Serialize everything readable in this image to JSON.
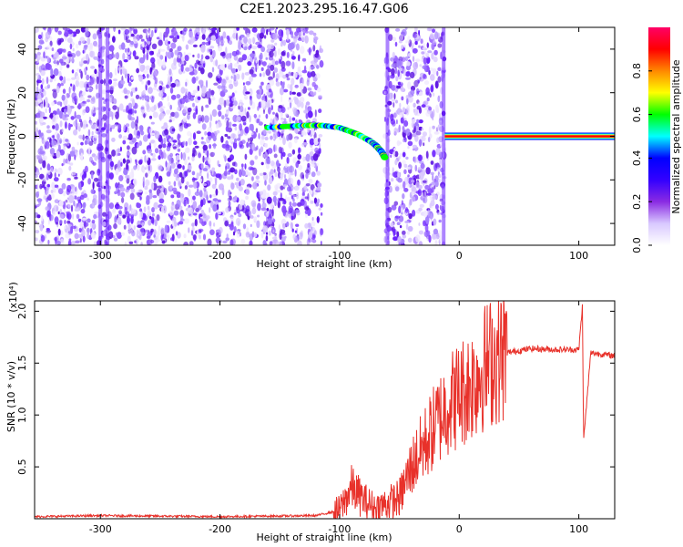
{
  "title": "C2E1.2023.295.16.47.G06",
  "chart_data": [
    {
      "type": "heatmap",
      "xlabel": "Height of straight line (km)",
      "ylabel": "Frequency (Hz)",
      "xlim": [
        -355,
        130
      ],
      "ylim": [
        -50,
        50
      ],
      "xticks": [
        -300,
        -200,
        -100,
        0,
        100
      ],
      "xtick_labels": [
        "-300",
        "-200",
        "-100",
        "0",
        "100"
      ],
      "yticks": [
        -40,
        -20,
        0,
        20,
        40
      ],
      "ytick_labels": [
        "-40",
        "-20",
        "0",
        "20",
        "40"
      ],
      "colorbar": {
        "label": "Normalized spectral amplitude",
        "range": [
          0,
          1
        ],
        "ticks": [
          0,
          0.2,
          0.4,
          0.6,
          0.8
        ],
        "tick_labels": [
          "0.0",
          "0.2",
          "0.4",
          "0.6",
          "0.8"
        ],
        "colormap": [
          "#ffffff",
          "#d8c8ff",
          "#8a2be2",
          "#3300ff",
          "#0000ff",
          "#00ffff",
          "#00ff00",
          "#ffff00",
          "#ff8800",
          "#ff0000",
          "#ff0066"
        ]
      },
      "features": {
        "noise_regions_km": [
          [
            -355,
            -115
          ],
          [
            -62,
            -12
          ]
        ],
        "clean_gap_km": [
          -115,
          -62
        ],
        "vertical_streaks_km": [
          -300,
          -294,
          -60,
          -13
        ],
        "doppler_curve": [
          {
            "x": -160,
            "y": 4
          },
          {
            "x": -130,
            "y": 5
          },
          {
            "x": -115,
            "y": 5
          },
          {
            "x": -100,
            "y": 4
          },
          {
            "x": -85,
            "y": 1
          },
          {
            "x": -75,
            "y": -2
          },
          {
            "x": -70,
            "y": -4
          },
          {
            "x": -65,
            "y": -7
          },
          {
            "x": -62,
            "y": -10
          }
        ],
        "steady_tone": {
          "x_start": -12,
          "x_end": 130,
          "frequency_hz": 0,
          "amplitude": 0.95
        }
      },
      "grid": false
    },
    {
      "type": "line",
      "xlabel": "Height of straight line (km)",
      "ylabel": "SNR (10 * v/v)",
      "scale_label": "(x10⁴)",
      "xlim": [
        -355,
        130
      ],
      "ylim": [
        0,
        2.1
      ],
      "xticks": [
        -300,
        -200,
        -100,
        0,
        100
      ],
      "xtick_labels": [
        "-300",
        "-200",
        "-100",
        "0",
        "100"
      ],
      "yticks": [
        0.5,
        1.0,
        1.5,
        2.0
      ],
      "ytick_labels": [
        "0.5",
        "1.0",
        "1.5",
        "2.0"
      ],
      "color": "#e8312a",
      "series": [
        {
          "values_description_points": [
            {
              "x": -355,
              "y": 0.02
            },
            {
              "x": -300,
              "y": 0.03
            },
            {
              "x": -200,
              "y": 0.02
            },
            {
              "x": -120,
              "y": 0.03
            },
            {
              "x": -100,
              "y": 0.08
            },
            {
              "x": -90,
              "y": 0.3
            },
            {
              "x": -80,
              "y": 0.18
            },
            {
              "x": -70,
              "y": 0.1
            },
            {
              "x": -60,
              "y": 0.15
            },
            {
              "x": -50,
              "y": 0.2
            },
            {
              "x": -40,
              "y": 0.5
            },
            {
              "x": -30,
              "y": 0.7
            },
            {
              "x": -20,
              "y": 0.9
            },
            {
              "x": -10,
              "y": 1.1
            },
            {
              "x": 0,
              "y": 1.2
            },
            {
              "x": 10,
              "y": 1.3
            },
            {
              "x": 20,
              "y": 1.45
            },
            {
              "x": 30,
              "y": 1.55
            },
            {
              "x": 40,
              "y": 1.6
            },
            {
              "x": 60,
              "y": 1.64
            },
            {
              "x": 80,
              "y": 1.63
            },
            {
              "x": 100,
              "y": 1.63
            },
            {
              "x": 103,
              "y": 2.05
            },
            {
              "x": 104,
              "y": 0.75
            },
            {
              "x": 110,
              "y": 1.6
            },
            {
              "x": 130,
              "y": 1.57
            }
          ]
        }
      ],
      "grid": false
    }
  ]
}
